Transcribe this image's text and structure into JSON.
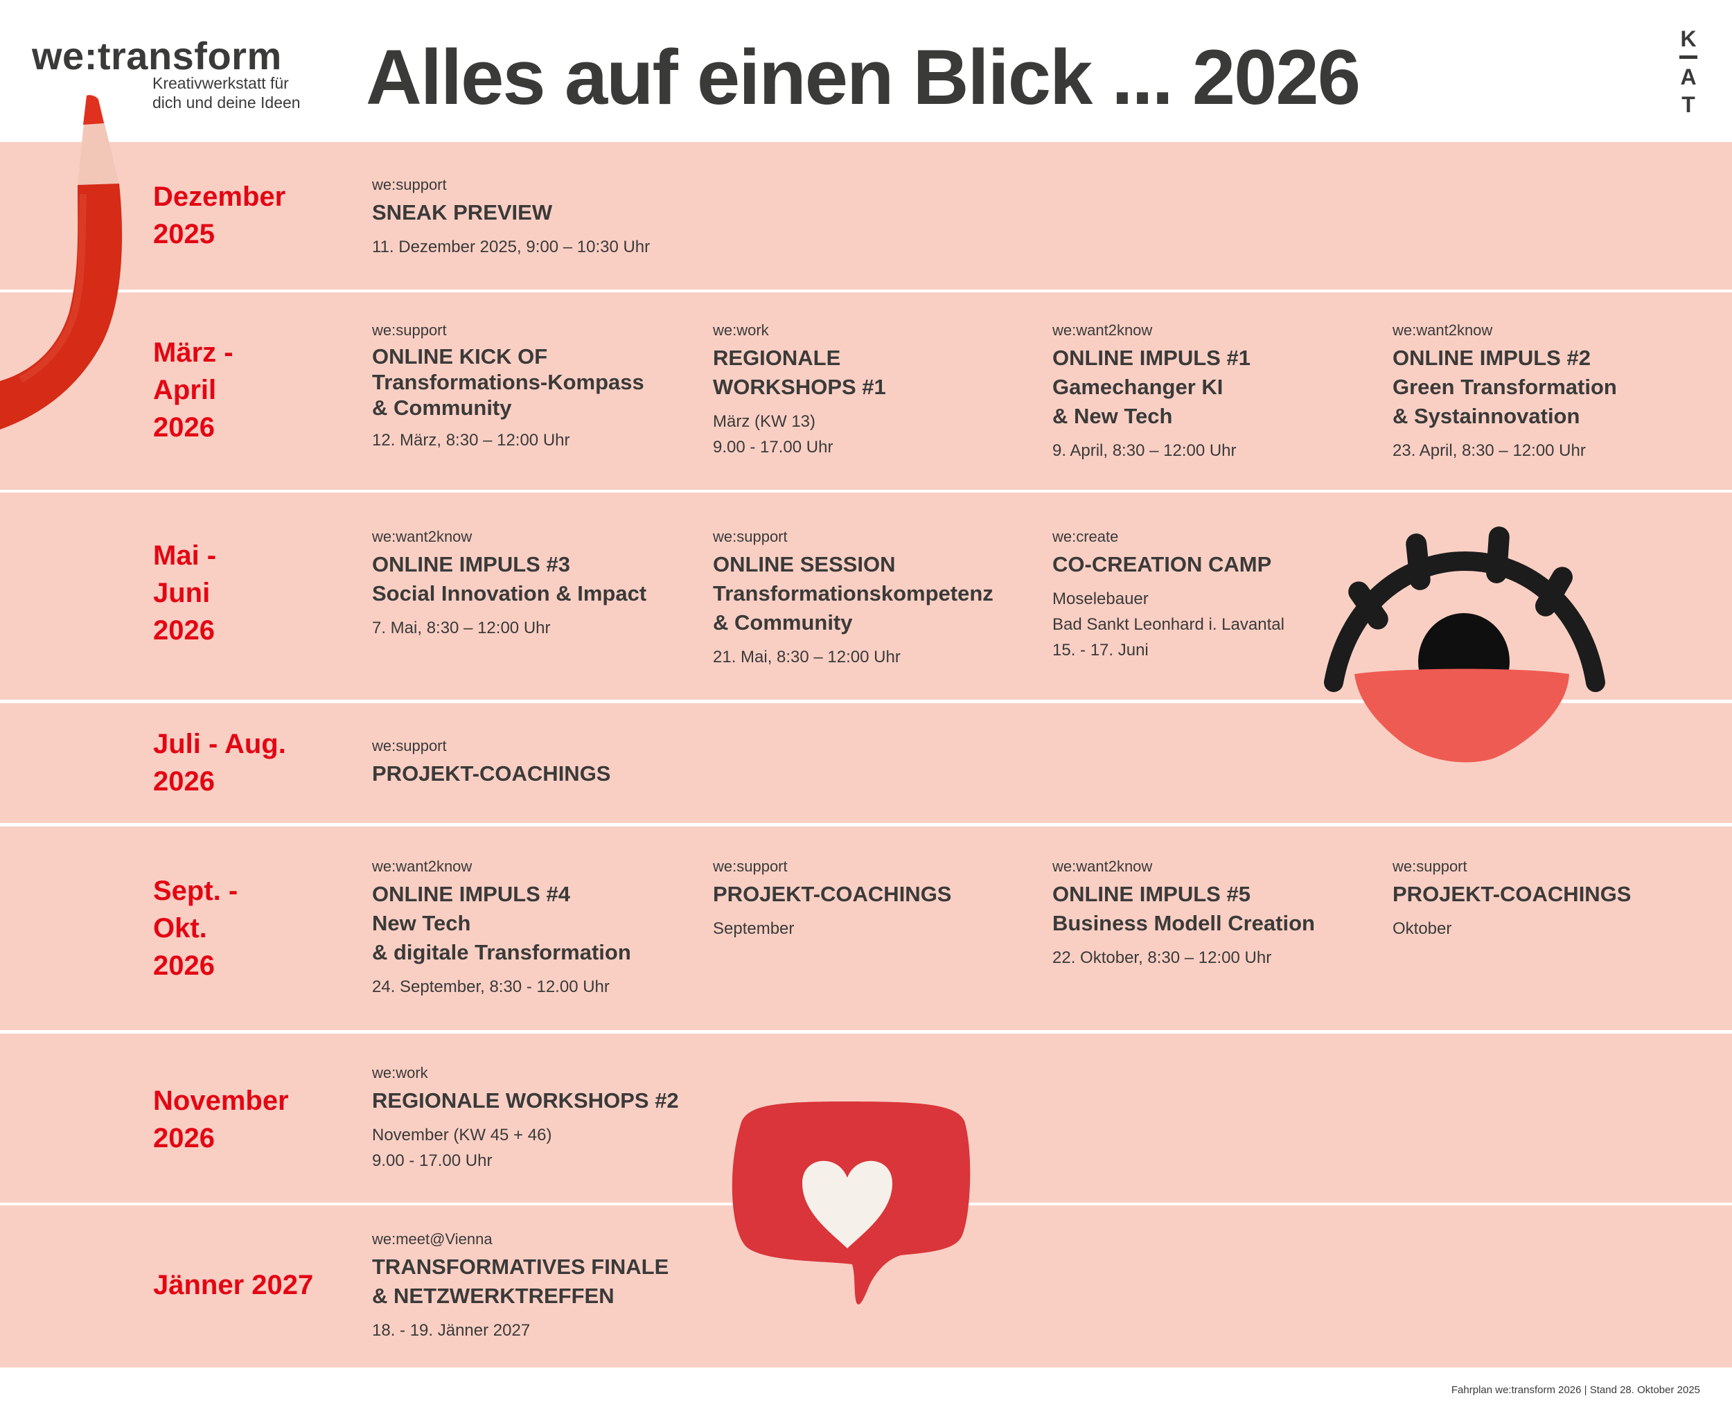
{
  "header": {
    "logo_word": "we:transform",
    "logo_tagline": [
      "Kreativwerkstatt für",
      "dich und deine Ideen"
    ],
    "title": "Alles auf einen Blick ... 2026",
    "kat_logo": [
      "K",
      "A",
      "T"
    ]
  },
  "colors": {
    "row_background": "#f9cfc4",
    "month_red": "#e30613",
    "text_dark": "#3a3a39"
  },
  "rows": [
    {
      "month": [
        "Dezember",
        "2025"
      ],
      "events": [
        {
          "category": "we:support",
          "title": [
            "SNEAK PREVIEW"
          ],
          "details": [
            "11. Dezember 2025, 9:00 – 10:30 Uhr"
          ]
        }
      ]
    },
    {
      "month": [
        "März -",
        "April",
        "2026"
      ],
      "events": [
        {
          "category": "we:support",
          "title": [
            "ONLINE KICK OF",
            "Transformations-Kompass",
            "& Community"
          ],
          "details": [
            "12. März, 8:30 – 12:00 Uhr"
          ]
        },
        {
          "category": "we:work",
          "title": [
            "REGIONALE",
            "WORKSHOPS #1"
          ],
          "details": [
            "März (KW 13)",
            "9.00 - 17.00 Uhr"
          ]
        },
        {
          "category": "we:want2know",
          "title": [
            "ONLINE IMPULS #1",
            "Gamechanger KI",
            "& New Tech"
          ],
          "details": [
            "9. April, 8:30 – 12:00 Uhr"
          ]
        },
        {
          "category": "we:want2know",
          "title": [
            "ONLINE IMPULS #2",
            "Green Transformation",
            "& Systainnovation"
          ],
          "details": [
            "23. April, 8:30 – 12:00 Uhr"
          ]
        }
      ]
    },
    {
      "month": [
        "Mai -",
        "Juni",
        "2026"
      ],
      "events": [
        {
          "category": "we:want2know",
          "title": [
            "ONLINE IMPULS #3",
            "Social Innovation & Impact"
          ],
          "details": [
            "7. Mai, 8:30 – 12:00 Uhr"
          ]
        },
        {
          "category": "we:support",
          "title": [
            "ONLINE SESSION",
            "Transformationskompetenz",
            "& Community"
          ],
          "details": [
            "21. Mai, 8:30 – 12:00 Uhr"
          ]
        },
        {
          "category": "we:create",
          "title": [
            "CO-CREATION CAMP"
          ],
          "details": [
            "Moselebauer",
            "Bad Sankt Leonhard i. Lavantal",
            "15. - 17. Juni"
          ]
        }
      ]
    },
    {
      "month": [
        "Juli - Aug.",
        "2026"
      ],
      "events": [
        {
          "category": "we:support",
          "title": [
            "PROJEKT-COACHINGS"
          ],
          "details": []
        }
      ]
    },
    {
      "month": [
        "Sept. -",
        "Okt.",
        "2026"
      ],
      "events": [
        {
          "category": "we:want2know",
          "title": [
            "ONLINE IMPULS #4",
            "New Tech",
            "& digitale Transformation"
          ],
          "details": [
            "24. September, 8:30 - 12.00 Uhr"
          ]
        },
        {
          "category": "we:support",
          "title": [
            "PROJEKT-COACHINGS"
          ],
          "details": [
            "September"
          ]
        },
        {
          "category": "we:want2know",
          "title": [
            "ONLINE IMPULS #5",
            "Business Modell Creation"
          ],
          "details": [
            "22. Oktober, 8:30 – 12:00 Uhr"
          ]
        },
        {
          "category": "we:support",
          "title": [
            "PROJEKT-COACHINGS"
          ],
          "details": [
            "Oktober"
          ]
        }
      ]
    },
    {
      "month": [
        "November",
        "2026"
      ],
      "events": [
        {
          "category": "we:work",
          "title": [
            "REGIONALE WORKSHOPS #2"
          ],
          "details": [
            "November (KW 45 + 46)",
            "9.00 - 17.00 Uhr"
          ]
        }
      ]
    },
    {
      "month": [
        "Jänner 2027"
      ],
      "events": [
        {
          "category": "we:meet@Vienna",
          "title": [
            "TRANSFORMATIVES FINALE",
            "& NETZWERKTREFFEN"
          ],
          "details": [
            "18. - 19. Jänner 2027"
          ]
        }
      ]
    }
  ],
  "illustrations": {
    "pencil": "clay-pencil-icon",
    "eye": "clay-eye-icon",
    "speech_bubble": "clay-heart-speech-bubble-icon"
  },
  "footer": {
    "text": "Fahrplan we:transform 2026 | Stand 28. Oktober 2025"
  }
}
